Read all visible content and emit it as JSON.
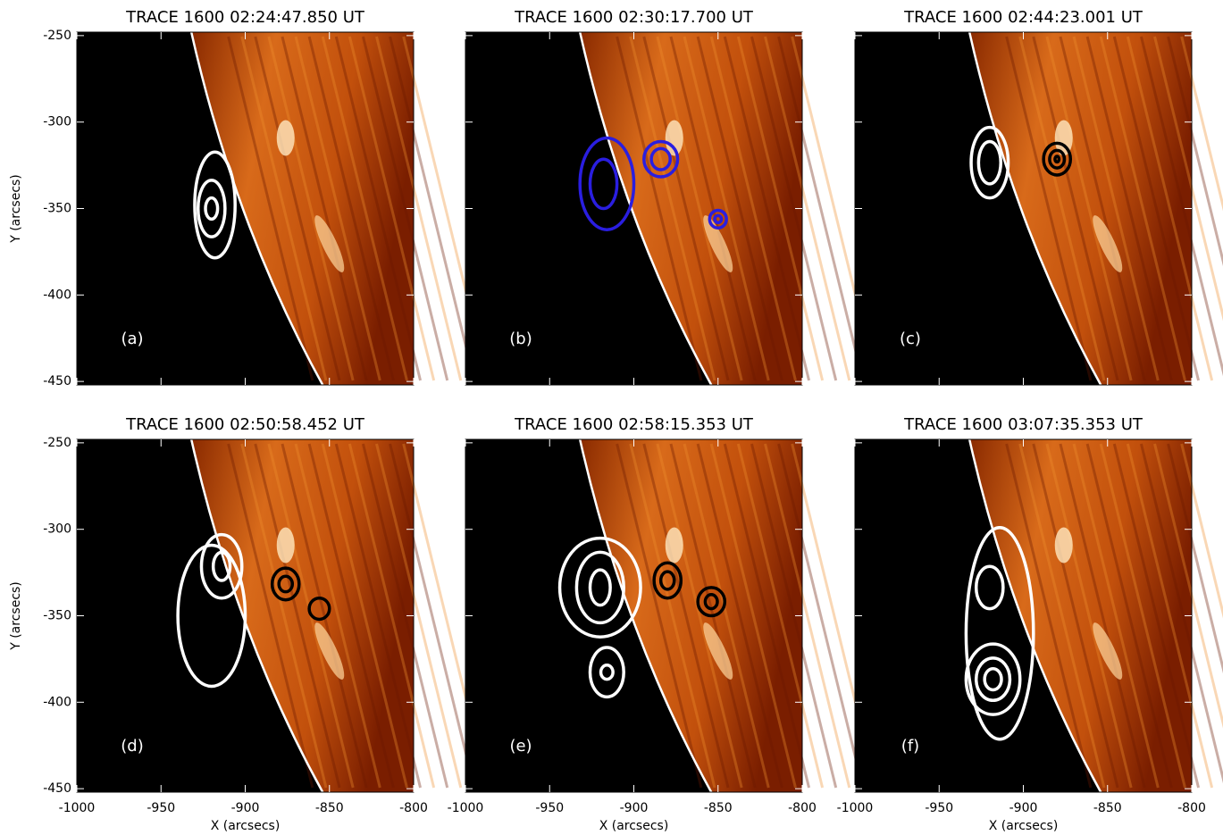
{
  "chart_data": [
    {
      "type": "image",
      "title": "TRACE 1600 02:24:47.850 UT",
      "panel_label": "(a)",
      "ylabel": "Y (arcsecs)",
      "xlim": [
        -1000,
        -800
      ],
      "ylim": [
        -452,
        -248
      ],
      "xticks": [
        -1000,
        -950,
        -900,
        -850,
        -800
      ],
      "yticks": [
        -450,
        -400,
        -350,
        -300,
        -250
      ],
      "show_xtick_labels": false,
      "show_ytick_labels": true
    },
    {
      "type": "image",
      "title": "TRACE 1600 02:30:17.700 UT",
      "panel_label": "(b)",
      "xlim": [
        -1000,
        -800
      ],
      "ylim": [
        -452,
        -248
      ],
      "xticks": [
        -1000,
        -950,
        -900,
        -850,
        -800
      ],
      "yticks": [
        -450,
        -400,
        -350,
        -300,
        -250
      ],
      "show_xtick_labels": false,
      "show_ytick_labels": false
    },
    {
      "type": "image",
      "title": "TRACE 1600 02:44:23.001 UT",
      "panel_label": "(c)",
      "xlim": [
        -1000,
        -800
      ],
      "ylim": [
        -452,
        -248
      ],
      "xticks": [
        -1000,
        -950,
        -900,
        -850,
        -800
      ],
      "yticks": [
        -450,
        -400,
        -350,
        -300,
        -250
      ],
      "show_xtick_labels": false,
      "show_ytick_labels": false
    },
    {
      "type": "image",
      "title": "TRACE 1600 02:50:58.452 UT",
      "panel_label": "(d)",
      "xlabel": "X (arcsecs)",
      "ylabel": "Y (arcsecs)",
      "xlim": [
        -1000,
        -800
      ],
      "ylim": [
        -452,
        -248
      ],
      "xticks": [
        -1000,
        -950,
        -900,
        -850,
        -800
      ],
      "yticks": [
        -450,
        -400,
        -350,
        -300,
        -250
      ],
      "show_xtick_labels": true,
      "show_ytick_labels": true
    },
    {
      "type": "image",
      "title": "TRACE 1600 02:58:15.353 UT",
      "panel_label": "(e)",
      "xlabel": "X (arcsecs)",
      "xlim": [
        -1000,
        -800
      ],
      "ylim": [
        -452,
        -248
      ],
      "xticks": [
        -1000,
        -950,
        -900,
        -850,
        -800
      ],
      "yticks": [
        -450,
        -400,
        -350,
        -300,
        -250
      ],
      "show_xtick_labels": true,
      "show_ytick_labels": false
    },
    {
      "type": "image",
      "title": "TRACE 1600 03:07:35.353 UT",
      "panel_label": "(f)",
      "xlabel": "X (arcsecs)",
      "xlim": [
        -1000,
        -800
      ],
      "ylim": [
        -452,
        -248
      ],
      "xticks": [
        -1000,
        -950,
        -900,
        -850,
        -800
      ],
      "yticks": [
        -450,
        -400,
        -350,
        -300,
        -250
      ],
      "show_xtick_labels": true,
      "show_ytick_labels": false
    }
  ]
}
